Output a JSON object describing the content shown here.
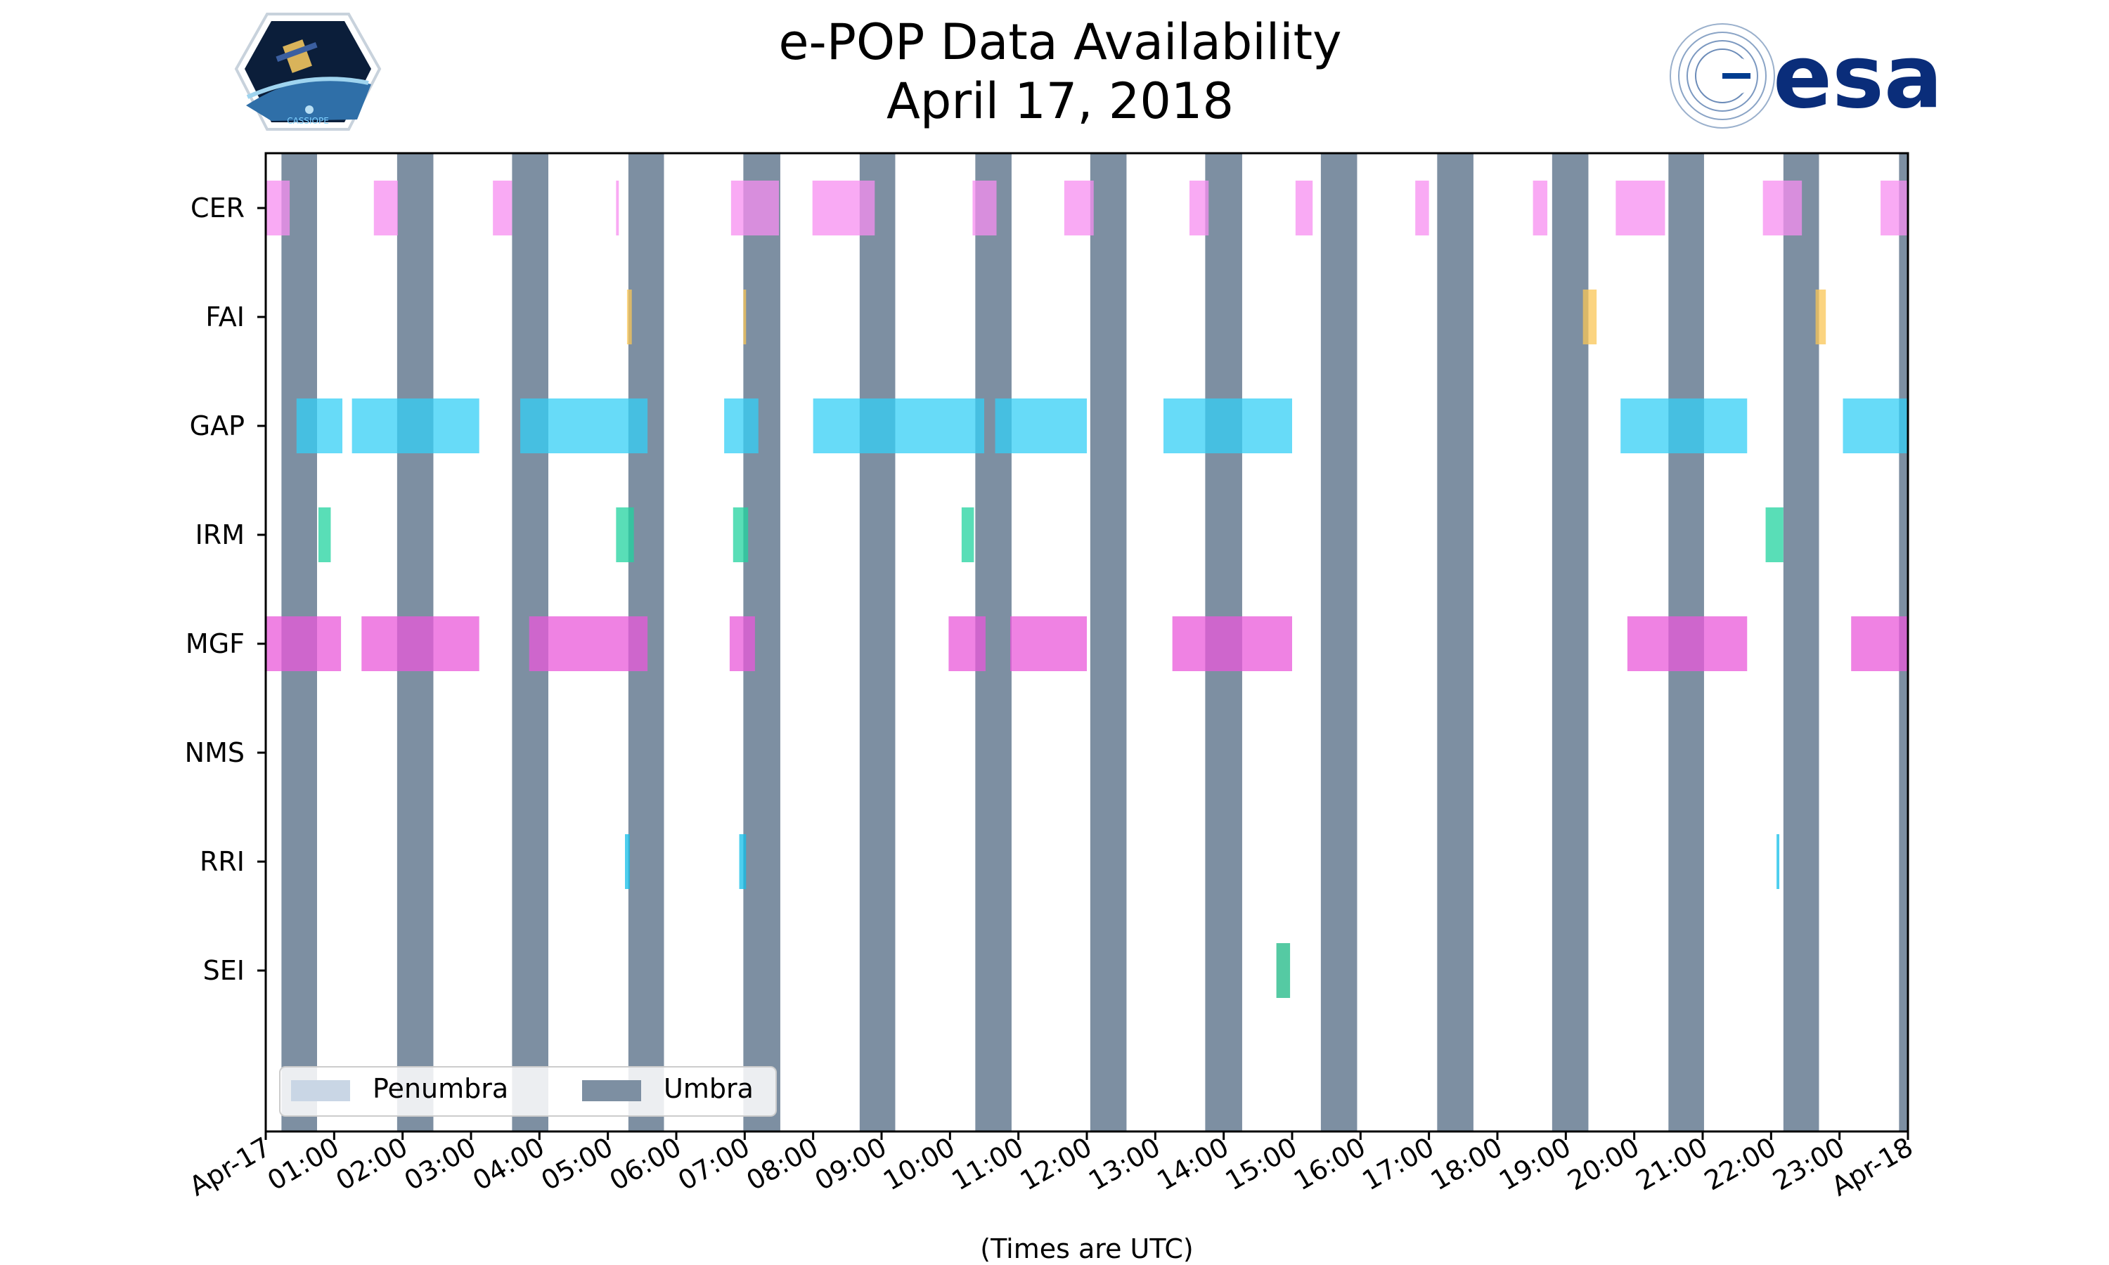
{
  "chart_data": {
    "type": "timeline",
    "title_line1": "e-POP Data Availability",
    "title_line2": "April 17, 2018",
    "xlabel": "(Times are UTC)",
    "x_unit": "hours UTC",
    "xlim": [
      0,
      24
    ],
    "x_ticks": [
      {
        "value": 0,
        "label": "Apr-17"
      },
      {
        "value": 1,
        "label": "01:00"
      },
      {
        "value": 2,
        "label": "02:00"
      },
      {
        "value": 3,
        "label": "03:00"
      },
      {
        "value": 4,
        "label": "04:00"
      },
      {
        "value": 5,
        "label": "05:00"
      },
      {
        "value": 6,
        "label": "06:00"
      },
      {
        "value": 7,
        "label": "07:00"
      },
      {
        "value": 8,
        "label": "08:00"
      },
      {
        "value": 9,
        "label": "09:00"
      },
      {
        "value": 10,
        "label": "10:00"
      },
      {
        "value": 11,
        "label": "11:00"
      },
      {
        "value": 12,
        "label": "12:00"
      },
      {
        "value": 13,
        "label": "13:00"
      },
      {
        "value": 14,
        "label": "14:00"
      },
      {
        "value": 15,
        "label": "15:00"
      },
      {
        "value": 16,
        "label": "16:00"
      },
      {
        "value": 17,
        "label": "17:00"
      },
      {
        "value": 18,
        "label": "18:00"
      },
      {
        "value": 19,
        "label": "19:00"
      },
      {
        "value": 20,
        "label": "20:00"
      },
      {
        "value": 21,
        "label": "21:00"
      },
      {
        "value": 22,
        "label": "22:00"
      },
      {
        "value": 23,
        "label": "23:00"
      },
      {
        "value": 24,
        "label": "Apr-18"
      }
    ],
    "instruments": [
      {
        "name": "CER",
        "color": "#f78ef0",
        "intervals": [
          [
            0.0,
            0.35
          ],
          [
            1.58,
            1.93
          ],
          [
            3.32,
            3.6
          ],
          [
            5.12,
            5.16
          ],
          [
            6.8,
            7.5
          ],
          [
            7.99,
            8.9
          ],
          [
            10.33,
            10.68
          ],
          [
            11.67,
            12.1
          ],
          [
            13.5,
            13.78
          ],
          [
            15.05,
            15.3
          ],
          [
            16.8,
            17.0
          ],
          [
            18.52,
            18.73
          ],
          [
            19.73,
            20.45
          ],
          [
            21.88,
            22.45
          ],
          [
            23.6,
            24.0
          ]
        ]
      },
      {
        "name": "FAI",
        "color": "#f9c655",
        "intervals": [
          [
            5.28,
            5.35
          ],
          [
            6.98,
            7.02
          ],
          [
            19.25,
            19.45
          ],
          [
            22.65,
            22.8
          ]
        ]
      },
      {
        "name": "GAP",
        "color": "#34cff6",
        "intervals": [
          [
            0.45,
            1.12
          ],
          [
            1.26,
            3.12
          ],
          [
            3.72,
            5.58
          ],
          [
            6.7,
            7.2
          ],
          [
            8.0,
            10.5
          ],
          [
            10.66,
            12.0
          ],
          [
            13.12,
            15.0
          ],
          [
            19.8,
            21.65
          ],
          [
            23.05,
            24.0
          ]
        ]
      },
      {
        "name": "IRM",
        "color": "#22d39f",
        "intervals": [
          [
            0.77,
            0.95
          ],
          [
            5.12,
            5.38
          ],
          [
            6.83,
            7.05
          ],
          [
            10.17,
            10.35
          ],
          [
            21.92,
            22.18
          ]
        ]
      },
      {
        "name": "MGF",
        "color": "#ea58da",
        "intervals": [
          [
            0.0,
            1.1
          ],
          [
            1.4,
            3.12
          ],
          [
            3.85,
            5.58
          ],
          [
            6.78,
            7.15
          ],
          [
            9.98,
            10.52
          ],
          [
            10.88,
            12.0
          ],
          [
            13.25,
            15.0
          ],
          [
            19.9,
            21.65
          ],
          [
            23.17,
            24.0
          ]
        ]
      },
      {
        "name": "NMS",
        "color": "#9999ff",
        "intervals": []
      },
      {
        "name": "RRI",
        "color": "#12bde8",
        "intervals": [
          [
            5.25,
            5.32
          ],
          [
            6.92,
            7.02
          ],
          [
            22.08,
            22.12
          ]
        ]
      },
      {
        "name": "SEI",
        "color": "#1cb884",
        "intervals": [
          [
            14.77,
            14.97
          ]
        ]
      }
    ],
    "umbra": [
      [
        0.23,
        0.75
      ],
      [
        1.92,
        2.45
      ],
      [
        3.6,
        4.13
      ],
      [
        5.3,
        5.82
      ],
      [
        6.98,
        7.52
      ],
      [
        8.68,
        9.2
      ],
      [
        10.37,
        10.9
      ],
      [
        12.05,
        12.58
      ],
      [
        13.73,
        14.27
      ],
      [
        15.42,
        15.95
      ],
      [
        17.12,
        17.65
      ],
      [
        18.8,
        19.33
      ],
      [
        20.5,
        21.02
      ],
      [
        22.18,
        22.7
      ],
      [
        23.87,
        24.0
      ]
    ],
    "penumbra": [],
    "legend": {
      "position": "lower-left",
      "entries": [
        {
          "label": "Penumbra",
          "color": "#c9d6e5"
        },
        {
          "label": "Umbra",
          "color": "#7d8fa2"
        }
      ]
    }
  },
  "logos": {
    "left_caption": "CASSIOPE",
    "right_text": "esa"
  }
}
